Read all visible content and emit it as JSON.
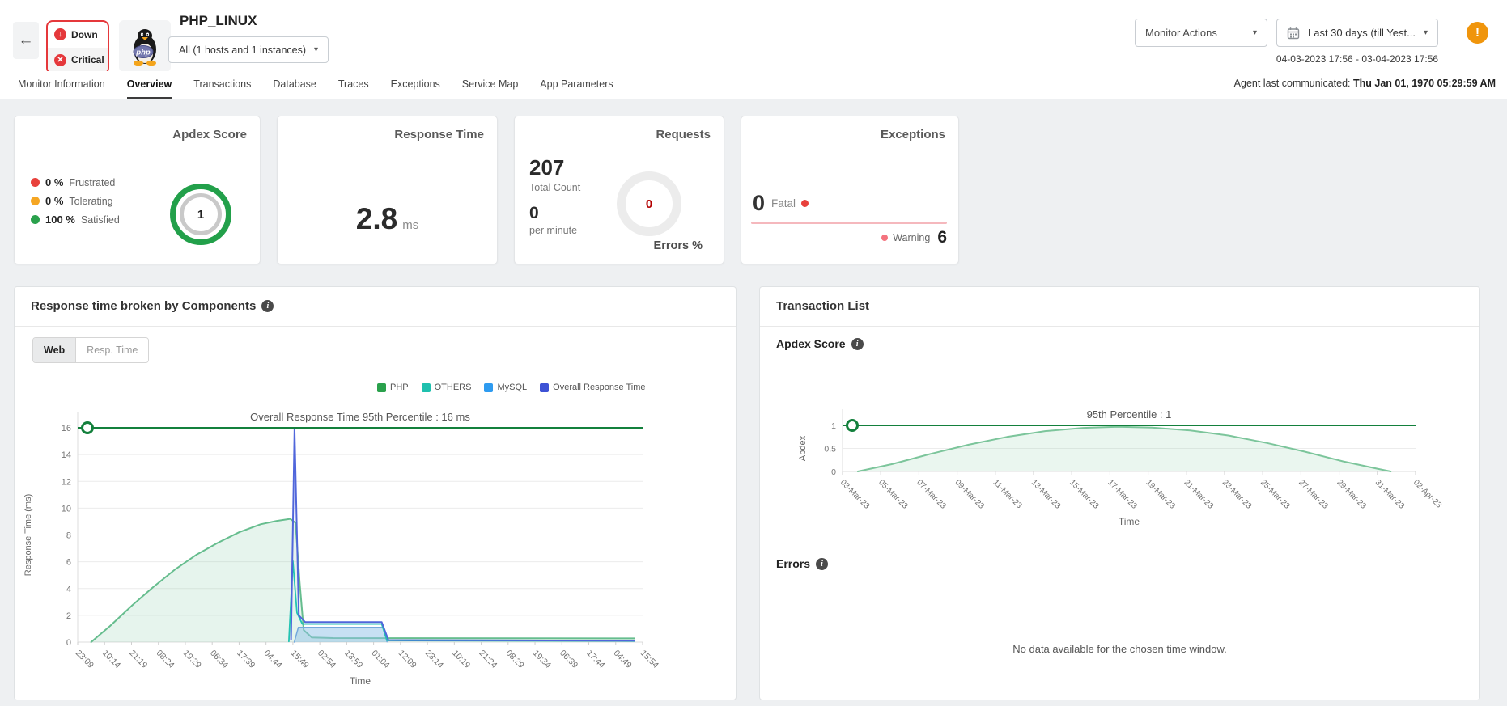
{
  "header": {
    "back_label": "←",
    "status": {
      "down": "Down",
      "critical": "Critical",
      "down_icon": "↓",
      "critical_icon": "✕"
    },
    "logo_text": "php",
    "title": "PHP_LINUX",
    "scope_dropdown": "All (1 hosts and 1 instances)",
    "monitor_actions": "Monitor Actions",
    "time_range": "Last 30 days (till Yest...",
    "time_range_detail": "04-03-2023 17:56 - 03-04-2023 17:56",
    "alert_badge": "!",
    "caret": "▾"
  },
  "tabs": {
    "items": [
      "Monitor Information",
      "Overview",
      "Transactions",
      "Database",
      "Traces",
      "Exceptions",
      "Service Map",
      "App Parameters"
    ],
    "active": "Overview",
    "agent_label": "Agent last communicated:",
    "agent_value": "Thu Jan 01, 1970 05:29:59 AM"
  },
  "cards": {
    "apdex": {
      "title": "Apdex Score",
      "legend": [
        {
          "pct": "0 %",
          "label": "Frustrated",
          "color": "#e8413c"
        },
        {
          "pct": "0 %",
          "label": "Tolerating",
          "color": "#f5a623"
        },
        {
          "pct": "100 %",
          "label": "Satisfied",
          "color": "#2aa14c"
        }
      ],
      "gauge_value": "1",
      "gauge_color": "#22a04a"
    },
    "response_time": {
      "title": "Response Time",
      "value": "2.8",
      "unit": "ms"
    },
    "requests": {
      "title": "Requests",
      "total": "207",
      "total_label": "Total Count",
      "per_minute": "0",
      "per_minute_label": "per minute",
      "errors_value": "0",
      "errors_label": "Errors %",
      "errors_color": "#b30000"
    },
    "exceptions": {
      "title": "Exceptions",
      "fatal_value": "0",
      "fatal_label": "Fatal",
      "fatal_dot_color": "#e8413c",
      "warning_label": "Warning",
      "warning_value": "6",
      "warning_dot_color": "#f4737e",
      "spark_color": "#f5b8bd"
    }
  },
  "left_panel": {
    "title": "Response time broken by Components",
    "toggles": [
      "Web",
      "Resp. Time"
    ],
    "active_toggle": "Web"
  },
  "right_panel": {
    "title": "Transaction List",
    "apdex_heading": "Apdex Score",
    "errors_heading": "Errors",
    "no_data": "No data available for the chosen time window."
  },
  "chart_data": [
    {
      "type": "area",
      "title": "Overall Response Time 95th Percentile : 16 ms",
      "xlabel": "Time",
      "ylabel": "Response Time (ms)",
      "ylim": [
        0,
        16
      ],
      "yticks": [
        0,
        2,
        4,
        6,
        8,
        10,
        12,
        14,
        16
      ],
      "grid": true,
      "legend_position": "top-right",
      "categories": [
        "23:09",
        "10:14",
        "21:19",
        "08:24",
        "19:29",
        "06:34",
        "17:39",
        "04:44",
        "15:49",
        "02:54",
        "13:59",
        "01:04",
        "12:09",
        "23:14",
        "10:19",
        "21:24",
        "08:29",
        "19:34",
        "06:39",
        "17:44",
        "04:49",
        "15:54"
      ],
      "percentile_line": {
        "value": 16,
        "label": "95th Percentile : 16 ms",
        "color": "#13803c"
      },
      "legend": [
        {
          "name": "PHP",
          "color": "#2aa14c"
        },
        {
          "name": "OTHERS",
          "color": "#1fc0ae"
        },
        {
          "name": "MySQL",
          "color": "#2e9bf0"
        },
        {
          "name": "Overall Response Time",
          "color": "#3d52d5"
        }
      ],
      "series": [
        {
          "name": "PHP",
          "color": "#66bd8e",
          "fill": "rgba(102,189,142,0.16)",
          "width": 2,
          "points": [
            [
              0.5,
              0
            ],
            [
              1.2,
              1.2
            ],
            [
              2,
              2.7
            ],
            [
              2.8,
              4.1
            ],
            [
              3.6,
              5.4
            ],
            [
              4.4,
              6.5
            ],
            [
              5.2,
              7.4
            ],
            [
              6,
              8.2
            ],
            [
              6.8,
              8.8
            ],
            [
              7.4,
              9.05
            ],
            [
              7.9,
              9.2
            ],
            [
              8.1,
              8.9
            ],
            [
              8.25,
              4.5
            ],
            [
              8.4,
              0.9
            ],
            [
              8.7,
              0.35
            ],
            [
              9.5,
              0.3
            ],
            [
              20.7,
              0.28
            ]
          ]
        },
        {
          "name": "MySQL",
          "color": "#74a9dc",
          "fill": "rgba(144,193,232,0.5)",
          "width": 1.5,
          "points": [
            [
              8.05,
              0
            ],
            [
              8.2,
              1.1
            ],
            [
              11.35,
              1.1
            ],
            [
              11.5,
              0.02
            ]
          ]
        },
        {
          "name": "OTHERS",
          "color": "#22c4b2",
          "width": 1.8,
          "points": [
            [
              7.85,
              0.05
            ],
            [
              8.0,
              6.05
            ],
            [
              8.15,
              2.2
            ],
            [
              8.35,
              1.35
            ],
            [
              11.3,
              1.35
            ],
            [
              11.5,
              0.12
            ],
            [
              20.7,
              0.08
            ]
          ]
        },
        {
          "name": "Overall Response Time",
          "color": "#5066db",
          "width": 2,
          "points": [
            [
              7.93,
              0.2
            ],
            [
              8.06,
              16
            ],
            [
              8.22,
              2.0
            ],
            [
              8.45,
              1.5
            ],
            [
              11.3,
              1.5
            ],
            [
              11.55,
              0.15
            ],
            [
              20.7,
              0.1
            ]
          ]
        }
      ]
    },
    {
      "type": "area",
      "title": "95th Percentile : 1",
      "xlabel": "Time",
      "ylabel": "Apdex",
      "ylim": [
        0,
        1
      ],
      "yticks": [
        0,
        0.5,
        1
      ],
      "grid": true,
      "categories": [
        "03-Mar-23",
        "05-Mar-23",
        "07-Mar-23",
        "09-Mar-23",
        "11-Mar-23",
        "13-Mar-23",
        "15-Mar-23",
        "17-Mar-23",
        "19-Mar-23",
        "21-Mar-23",
        "23-Mar-23",
        "25-Mar-23",
        "27-Mar-23",
        "29-Mar-23",
        "31-Mar-23",
        "02-Apr-23"
      ],
      "percentile_line": {
        "value": 1,
        "label": "95th Percentile : 1",
        "color": "#13803c"
      },
      "series": [
        {
          "name": "Apdex",
          "color": "#7cc59b",
          "fill": "rgba(124,197,155,0.16)",
          "width": 2,
          "points": [
            [
              0.4,
              0
            ],
            [
              1.3,
              0.16
            ],
            [
              2.3,
              0.38
            ],
            [
              3.3,
              0.58
            ],
            [
              4.3,
              0.75
            ],
            [
              5.3,
              0.875
            ],
            [
              6.3,
              0.945
            ],
            [
              7.2,
              0.97
            ],
            [
              8.1,
              0.95
            ],
            [
              9.1,
              0.89
            ],
            [
              10.1,
              0.78
            ],
            [
              11.1,
              0.62
            ],
            [
              12.1,
              0.43
            ],
            [
              13.1,
              0.22
            ],
            [
              14.0,
              0.06
            ],
            [
              14.35,
              0
            ]
          ]
        }
      ]
    }
  ]
}
